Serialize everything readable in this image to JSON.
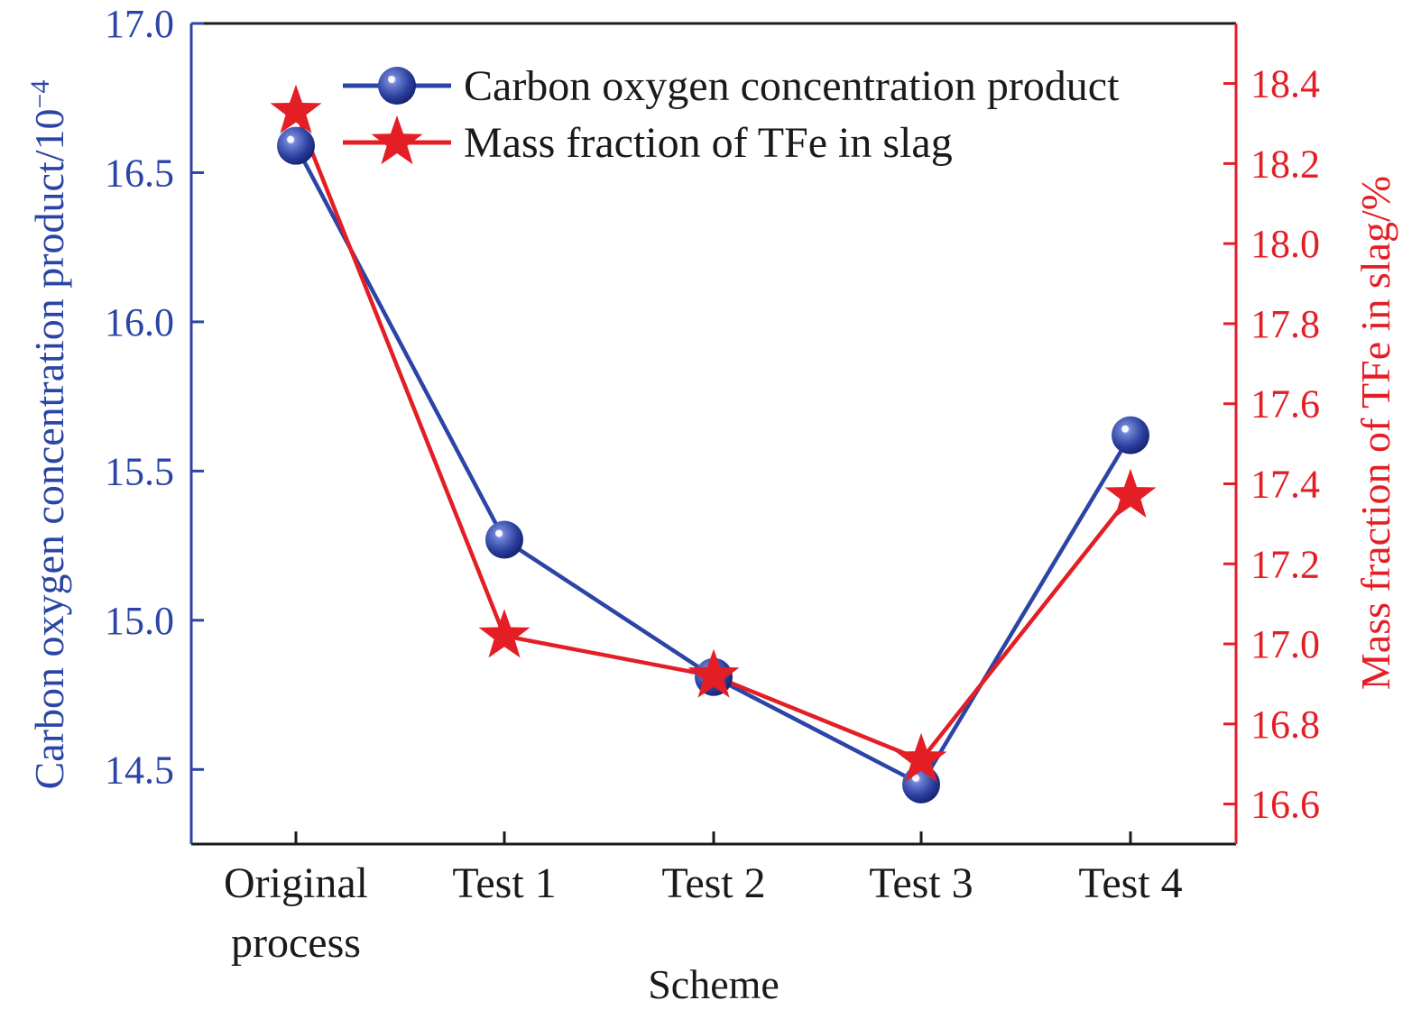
{
  "chart_data": {
    "type": "line",
    "categories": [
      [
        "Original",
        "process"
      ],
      [
        "Test 1"
      ],
      [
        "Test 2"
      ],
      [
        "Test 3"
      ],
      [
        "Test 4"
      ]
    ],
    "xlabel": "Scheme",
    "series": [
      {
        "name": "Carbon oxygen concentration product",
        "axis": "left",
        "marker": "sphere",
        "color": "#2b45a6",
        "values": [
          16.59,
          15.27,
          14.81,
          14.45,
          15.62
        ]
      },
      {
        "name": "Mass fraction of TFe in slag",
        "axis": "right",
        "marker": "star",
        "color": "#e31e24",
        "values": [
          18.33,
          17.02,
          16.92,
          16.71,
          17.37
        ]
      }
    ],
    "y_left": {
      "label": "Carbon oxygen concentration product/10",
      "label_superscript": "−4",
      "ylim": [
        14.25,
        17.0
      ],
      "ticks": [
        "14.5",
        "15.0",
        "15.5",
        "16.0",
        "16.5",
        "17.0"
      ],
      "color": "#2b45a6"
    },
    "y_right": {
      "label": "Mass fraction of TFe in slag/%",
      "ylim": [
        16.5,
        18.55
      ],
      "ticks": [
        "16.6",
        "16.8",
        "17.0",
        "17.2",
        "17.4",
        "17.6",
        "17.8",
        "18.0",
        "18.2",
        "18.4"
      ],
      "color": "#e31e24"
    },
    "grid": false,
    "legend_position": "top"
  }
}
